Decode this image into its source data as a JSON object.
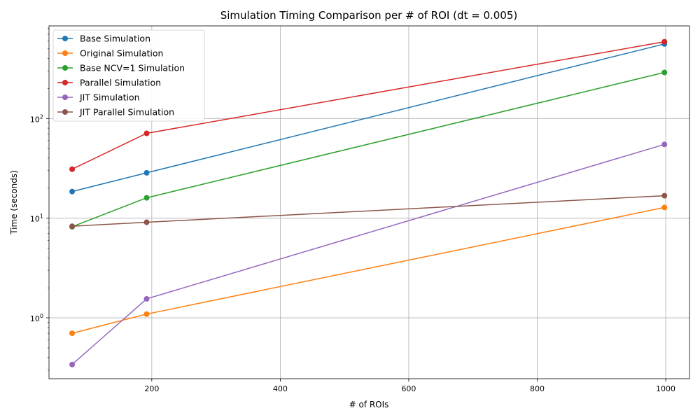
{
  "chart_data": {
    "type": "line",
    "title": "Simulation Timing Comparison per # of ROI (dt = 0.005)",
    "xlabel": "# of ROIs",
    "ylabel": "Time (seconds)",
    "yscale": "log",
    "grid": true,
    "legend_position": "upper-left",
    "xlim": [
      40,
      1037
    ],
    "ylim": [
      0.245,
      850
    ],
    "x_ticks": [
      200,
      400,
      600,
      800,
      1000
    ],
    "y_ticks": [
      1,
      10,
      100
    ],
    "x_tick_labels": [
      "200",
      "400",
      "600",
      "800",
      "1000"
    ],
    "y_tick_labels": [
      {
        "base": "10",
        "exp": "0"
      },
      {
        "base": "10",
        "exp": "1"
      },
      {
        "base": "10",
        "exp": "2"
      }
    ],
    "x": [
      76,
      192,
      998
    ],
    "series": [
      {
        "name": "Base Simulation",
        "color": "#1f77b4",
        "values": [
          18.5,
          28.5,
          560
        ]
      },
      {
        "name": "Original Simulation",
        "color": "#ff7f0e",
        "values": [
          0.7,
          1.09,
          12.8
        ]
      },
      {
        "name": "Base NCV=1 Simulation",
        "color": "#2ca02c",
        "values": [
          8.2,
          16.0,
          290
        ]
      },
      {
        "name": "Parallel Simulation",
        "color": "#d62728",
        "values": [
          31.0,
          71.0,
          590
        ]
      },
      {
        "name": "JIT Simulation",
        "color": "#9467bd",
        "values": [
          0.34,
          1.55,
          55
        ]
      },
      {
        "name": "JIT Parallel Simulation",
        "color": "#8c564b",
        "values": [
          8.3,
          9.1,
          16.8
        ]
      }
    ]
  }
}
